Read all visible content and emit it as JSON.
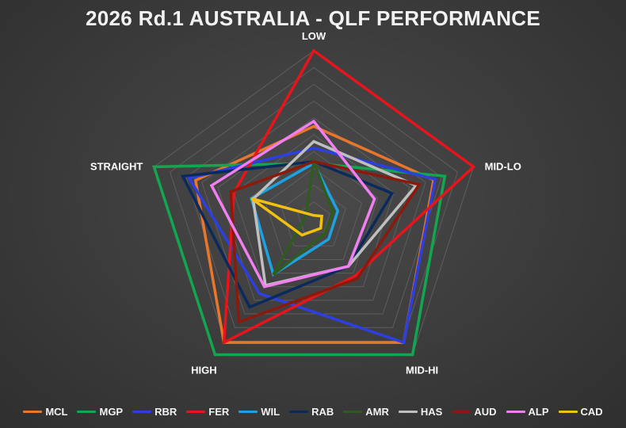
{
  "chart_data": {
    "type": "radar",
    "title": "2026 Rd.1 AUSTRALIA - QLF PERFORMANCE",
    "axes": [
      "LOW",
      "MID-LO",
      "MID-HI",
      "HIGH",
      "STRAIGHT"
    ],
    "rmax": 10,
    "grid_levels": 10,
    "legend_position": "bottom",
    "series": [
      {
        "name": "MCL",
        "color": "#e8762d",
        "values": [
          5.5,
          7.5,
          9.1,
          9.1,
          7.4
        ]
      },
      {
        "name": "MGP",
        "color": "#12a650",
        "values": [
          3.3,
          8.2,
          10.0,
          10.0,
          10.0
        ]
      },
      {
        "name": "RBR",
        "color": "#2d3fe0",
        "values": [
          4.2,
          7.6,
          9.1,
          5.5,
          7.8
        ]
      },
      {
        "name": "FER",
        "color": "#e8141c",
        "values": [
          10.0,
          10.0,
          4.2,
          9.1,
          5.0
        ]
      },
      {
        "name": "WIL",
        "color": "#1da1e0",
        "values": [
          3.3,
          1.5,
          1.5,
          4.1,
          3.9
        ]
      },
      {
        "name": "RAB",
        "color": "#0a2a5c",
        "values": [
          3.4,
          4.9,
          3.5,
          6.5,
          8.2
        ]
      },
      {
        "name": "AMR",
        "color": "#2f5c1e",
        "values": [
          3.4,
          1.2,
          1.1,
          4.1,
          0.5
        ]
      },
      {
        "name": "HAS",
        "color": "#bfbfbf",
        "values": [
          4.6,
          6.4,
          3.5,
          4.9,
          3.8
        ]
      },
      {
        "name": "AUD",
        "color": "#8b1a0c",
        "values": [
          3.4,
          6.6,
          4.4,
          7.6,
          5.2
        ]
      },
      {
        "name": "ALP",
        "color": "#f27ff2",
        "values": [
          5.8,
          3.8,
          3.5,
          5.0,
          6.4
        ]
      },
      {
        "name": "CAD",
        "color": "#f2c10f",
        "values": [
          0.2,
          0.5,
          0.7,
          1.2,
          3.9
        ]
      }
    ]
  }
}
